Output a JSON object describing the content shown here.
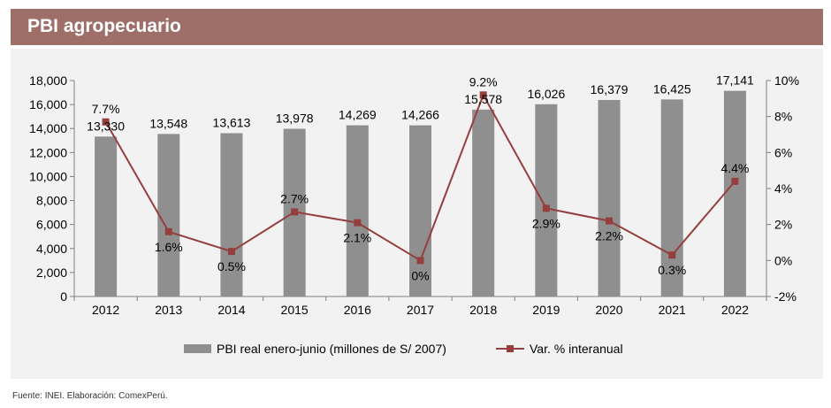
{
  "header": {
    "title": "PBI agropecuario"
  },
  "source": "Fuente: INEI. Elaboración: ComexPerú.",
  "colors": {
    "header_bg": "#9e6e69",
    "bar": "#8f8f8f",
    "line": "#943f3d",
    "panel": "#f2f2f2"
  },
  "chart_data": {
    "type": "bar",
    "title": "PBI agropecuario",
    "categories": [
      "2012",
      "2013",
      "2014",
      "2015",
      "2016",
      "2017",
      "2018",
      "2019",
      "2020",
      "2021",
      "2022"
    ],
    "series": [
      {
        "name": "PBI real enero-junio (millones de S/ 2007)",
        "type": "bar",
        "axis": "left",
        "values": [
          13330,
          13548,
          13613,
          13978,
          14269,
          14266,
          15578,
          16026,
          16379,
          16425,
          17141
        ],
        "labels": [
          "13,330",
          "13,548",
          "13,613",
          "13,978",
          "14,269",
          "14,266",
          "15,578",
          "16,026",
          "16,379",
          "16,425",
          "17,141"
        ]
      },
      {
        "name": "Var. % interanual",
        "type": "line",
        "axis": "right",
        "values": [
          7.7,
          1.6,
          0.5,
          2.7,
          2.1,
          0,
          9.2,
          2.9,
          2.2,
          0.3,
          4.4
        ],
        "labels": [
          "7.7%",
          "1.6%",
          "0.5%",
          "2.7%",
          "2.1%",
          "0%",
          "9.2%",
          "2.9%",
          "2.2%",
          "0.3%",
          "4.4%"
        ]
      }
    ],
    "y_left": {
      "min": 0,
      "max": 18000,
      "step": 2000,
      "ticks": [
        "0",
        "2,000",
        "4,000",
        "6,000",
        "8,000",
        "10,000",
        "12,000",
        "14,000",
        "16,000",
        "18,000"
      ]
    },
    "y_right": {
      "min": -2,
      "max": 10,
      "step": 2,
      "ticks": [
        "-2%",
        "0%",
        "2%",
        "4%",
        "6%",
        "8%",
        "10%"
      ]
    },
    "legend": {
      "placement": "bottom",
      "bar_label": "PBI real enero-junio (millones de S/ 2007)",
      "line_label": "Var. % interanual"
    }
  }
}
